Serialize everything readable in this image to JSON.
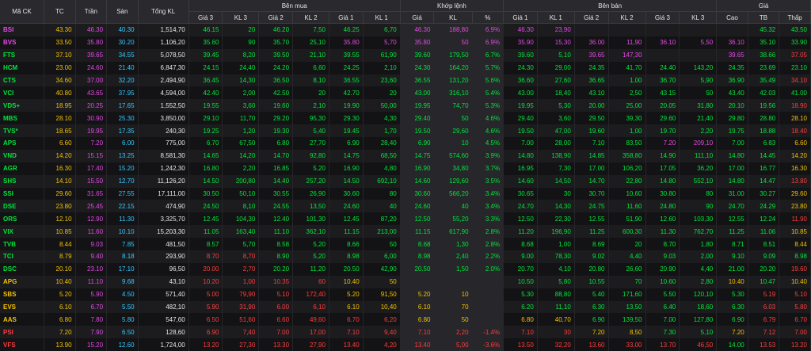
{
  "groups": {
    "buy": "Bên mua",
    "match": "Khớp lệnh",
    "sell": "Bên bán",
    "price": "Giá"
  },
  "columns": [
    "Mã CK",
    "TC",
    "Trần",
    "Sàn",
    "Tổng KL",
    "Giá 3",
    "KL 3",
    "Giá 2",
    "KL 2",
    "Giá 1",
    "KL 1",
    "Giá",
    "KL",
    "%",
    "Giá 1",
    "KL 1",
    "Giá 2",
    "KL 2",
    "Giá 3",
    "KL 3",
    "Cao",
    "TB",
    "Thấp"
  ],
  "rows": [
    [
      "BSI",
      "43.30",
      "46.30",
      "40.30",
      "1,514,70",
      "46.15",
      "20",
      "46.20",
      "7,50",
      "46.25",
      "6,70",
      "46.30",
      "188,80",
      "6.9%",
      "46.30",
      "23,90",
      "",
      "",
      "",
      "",
      "",
      "45.32",
      "43.50"
    ],
    [
      "BVS",
      "33.50",
      "35.80",
      "30.20",
      "1,106,20",
      "35.60",
      "90",
      "35.70",
      "25,10",
      "35.80",
      "5,70",
      "35.80",
      "50",
      "6.9%",
      "35.90",
      "15,30",
      "36.00",
      "11,90",
      "36.10",
      "5,50",
      "36.10",
      "35.10",
      "33.90"
    ],
    [
      "FTS",
      "37.10",
      "39.65",
      "34.55",
      "5,078,50",
      "39.45",
      "8,20",
      "39.50",
      "21,10",
      "39.55",
      "61,90",
      "39.60",
      "179,50",
      "6.7%",
      "39.60",
      "5,10",
      "39.65",
      "147,30",
      "",
      "",
      "39.65",
      "38.66",
      "37.05"
    ],
    [
      "HCM",
      "23.00",
      "24.60",
      "21.40",
      "6,847,30",
      "24.15",
      "24,40",
      "24.20",
      "6,60",
      "24.25",
      "2,10",
      "24.30",
      "164,20",
      "5.7%",
      "24.30",
      "29,00",
      "24.35",
      "41,70",
      "24.40",
      "143,20",
      "24.35",
      "23.69",
      "23.10"
    ],
    [
      "CTS",
      "34.60",
      "37.00",
      "32.20",
      "2,494,90",
      "36.45",
      "14,30",
      "36.50",
      "8,10",
      "36.55",
      "23,60",
      "36.55",
      "131,20",
      "5.6%",
      "36.60",
      "27,60",
      "36.65",
      "1,00",
      "36.70",
      "5,90",
      "36.90",
      "35.49",
      "34.10"
    ],
    [
      "VCI",
      "40.80",
      "43.65",
      "37.95",
      "4,594,00",
      "42.40",
      "2,00",
      "42.50",
      "20",
      "42.70",
      "20",
      "43.00",
      "316,10",
      "5.4%",
      "43.00",
      "18,40",
      "43.10",
      "2,50",
      "43.15",
      "50",
      "43.40",
      "42.03",
      "41.00"
    ],
    [
      "VDS+",
      "18.95",
      "20.25",
      "17.65",
      "1,552,50",
      "19.55",
      "3,60",
      "19.60",
      "2,10",
      "19.90",
      "50,00",
      "19.95",
      "74,70",
      "5.3%",
      "19.95",
      "5,30",
      "20.00",
      "25,00",
      "20.05",
      "31,80",
      "20.10",
      "19.56",
      "18.90"
    ],
    [
      "MBS",
      "28.10",
      "30.90",
      "25.30",
      "3,850,00",
      "29.10",
      "11,70",
      "29.20",
      "95,30",
      "29.30",
      "4,30",
      "29.40",
      "50",
      "4.6%",
      "29.40",
      "3,60",
      "29.50",
      "39,30",
      "29.60",
      "21,40",
      "29.80",
      "28.80",
      "28.10"
    ],
    [
      "TVS*",
      "18.65",
      "19.95",
      "17.35",
      "240,30",
      "19.25",
      "1,20",
      "19.30",
      "5,40",
      "19.45",
      "1,70",
      "19.50",
      "29,60",
      "4.6%",
      "19.50",
      "47,00",
      "19.60",
      "1,00",
      "19.70",
      "2,20",
      "19.75",
      "18.88",
      "18.40"
    ],
    [
      "APS",
      "6.60",
      "7.20",
      "6.00",
      "775,00",
      "6.70",
      "67,50",
      "6.80",
      "27,70",
      "6.90",
      "28,40",
      "6.90",
      "10",
      "4.5%",
      "7.00",
      "28,00",
      "7.10",
      "83,50",
      "7.20",
      "209,10",
      "7.00",
      "6.83",
      "6.60"
    ],
    [
      "VND",
      "14.20",
      "15.15",
      "13.25",
      "8,581,30",
      "14.65",
      "14,20",
      "14.70",
      "92,80",
      "14.75",
      "68,50",
      "14.75",
      "574,60",
      "3.9%",
      "14.80",
      "138,90",
      "14.85",
      "358,80",
      "14.90",
      "111,10",
      "14.80",
      "14.45",
      "14.20"
    ],
    [
      "AGR",
      "16.30",
      "17.40",
      "15.20",
      "1,242,30",
      "16.80",
      "2,20",
      "16.85",
      "5,20",
      "16.90",
      "4,80",
      "16.90",
      "34,80",
      "3.7%",
      "16.95",
      "7,30",
      "17.00",
      "106,20",
      "17.05",
      "36,20",
      "17.00",
      "16.77",
      "16.30"
    ],
    [
      "SHS",
      "14.10",
      "15.50",
      "12.70",
      "11,126,20",
      "14.50",
      "200,80",
      "14.40",
      "257,20",
      "14.50",
      "692,10",
      "14.60",
      "129,60",
      "3.5%",
      "14.60",
      "14,50",
      "14.70",
      "22,80",
      "14.80",
      "552,10",
      "14.80",
      "14.47",
      "13.80"
    ],
    [
      "SSI",
      "29.60",
      "31.65",
      "27.55",
      "17,111,00",
      "30.50",
      "50,10",
      "30.55",
      "26,90",
      "30.60",
      "80",
      "30.60",
      "566,20",
      "3.4%",
      "30.65",
      "30",
      "30.70",
      "10,60",
      "30.80",
      "80",
      "31.00",
      "30.27",
      "29.60"
    ],
    [
      "DSE",
      "23.80",
      "25.45",
      "22.15",
      "474,90",
      "24.50",
      "8,10",
      "24.55",
      "13,50",
      "24.60",
      "40",
      "24.60",
      "40",
      "3.4%",
      "24.70",
      "14,30",
      "24.75",
      "11,60",
      "24.80",
      "90",
      "24.70",
      "24.29",
      "23.80"
    ],
    [
      "ORS",
      "12.10",
      "12.90",
      "11.30",
      "3,325,70",
      "12.45",
      "104,30",
      "12.40",
      "101,30",
      "12.45",
      "87,20",
      "12.50",
      "55,20",
      "3.3%",
      "12.50",
      "22,30",
      "12.55",
      "51,90",
      "12.60",
      "103,30",
      "12.55",
      "12.24",
      "11.90"
    ],
    [
      "VIX",
      "10.85",
      "11.60",
      "10.10",
      "15,203,30",
      "11.05",
      "163,40",
      "11.10",
      "362,10",
      "11.15",
      "213,00",
      "11.15",
      "617,90",
      "2.8%",
      "11.20",
      "196,90",
      "11.25",
      "600,30",
      "11.30",
      "762,70",
      "11.25",
      "11.06",
      "10.85"
    ],
    [
      "TVB",
      "8.44",
      "9.03",
      "7.85",
      "481,50",
      "8.57",
      "5,70",
      "8.58",
      "5,20",
      "8.66",
      "50",
      "8.68",
      "1,30",
      "2.8%",
      "8.68",
      "1,00",
      "8.69",
      "20",
      "8.70",
      "1,80",
      "8.71",
      "8.51",
      "8.44"
    ],
    [
      "TCI",
      "8.79",
      "9.40",
      "8.18",
      "293,90",
      "8.70",
      "8,70",
      "8.90",
      "5,20",
      "8.98",
      "6,00",
      "8.98",
      "2,40",
      "2.2%",
      "9.00",
      "78,30",
      "9.02",
      "4,40",
      "9.03",
      "2,00",
      "9.10",
      "9.09",
      "8.98"
    ],
    [
      "DSC",
      "20.10",
      "23.10",
      "17.10",
      "96,50",
      "20.00",
      "2,70",
      "20.20",
      "11,20",
      "20.50",
      "42,90",
      "20.50",
      "1,50",
      "2.0%",
      "20.70",
      "4,10",
      "20.80",
      "26,60",
      "20.90",
      "4,40",
      "21.00",
      "20.20",
      "19.60"
    ],
    [
      "APG",
      "10.40",
      "11.10",
      "9.68",
      "43,10",
      "10.20",
      "1,00",
      "10.35",
      "60",
      "10.40",
      "50",
      "",
      "",
      "",
      "10.50",
      "5,80",
      "10.55",
      "70",
      "10.60",
      "2,80",
      "10.40",
      "10.47",
      "10.40"
    ],
    [
      "SBS",
      "5.20",
      "5.90",
      "4.50",
      "571,40",
      "5.00",
      "79,90",
      "5.10",
      "172,40",
      "5.20",
      "91,50",
      "5.20",
      "10",
      "",
      "5.30",
      "88,80",
      "5.40",
      "171,60",
      "5.50",
      "120,10",
      "5.30",
      "5.19",
      "5.10"
    ],
    [
      "EVS",
      "6.10",
      "6.70",
      "5.50",
      "482,10",
      "5.90",
      "31,90",
      "6.00",
      "6,10",
      "6.10",
      "10,40",
      "6.10",
      "70",
      "",
      "6.20",
      "11,10",
      "6.30",
      "13,50",
      "6.40",
      "18,60",
      "6.30",
      "6.03",
      "5.80"
    ],
    [
      "AAS",
      "6.80",
      "7.80",
      "5.80",
      "547,60",
      "6.50",
      "51,60",
      "6.60",
      "49,60",
      "6.70",
      "6,20",
      "6.80",
      "50",
      "",
      "6.80",
      "40,70",
      "6.90",
      "139,50",
      "7.00",
      "127,80",
      "6.90",
      "6.79",
      "6.70"
    ],
    [
      "PSI",
      "7.20",
      "7.90",
      "6.50",
      "128,60",
      "6.90",
      "7,40",
      "7.00",
      "17,00",
      "7.10",
      "9,40",
      "7.10",
      "2,20",
      "-1.4%",
      "7.10",
      "30",
      "7.20",
      "8,50",
      "7.30",
      "5,10",
      "7.20",
      "7.12",
      "7.00"
    ],
    [
      "VFS",
      "13.90",
      "15.20",
      "12.60",
      "1,724,00",
      "13.20",
      "27,30",
      "13.30",
      "27,90",
      "13.40",
      "4,20",
      "13.40",
      "5,00",
      "-3.6%",
      "13.50",
      "32,20",
      "13.60",
      "33,00",
      "13.70",
      "46,50",
      "14.00",
      "13.53",
      "13.20"
    ]
  ],
  "colors": {
    "up": "#00e639",
    "down": "#ff3d3d",
    "ref": "#f2c200",
    "ceil": "#e449e4",
    "floor": "#33c8ff"
  }
}
